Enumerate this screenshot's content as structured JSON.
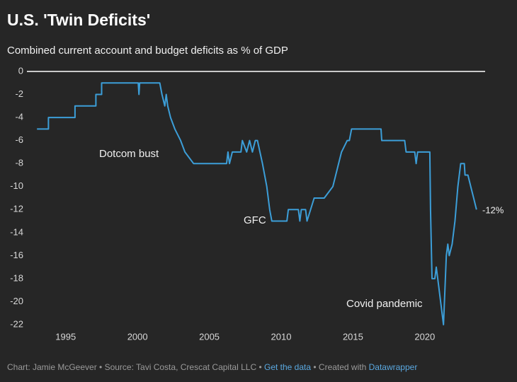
{
  "chart_data": {
    "type": "line",
    "title": "U.S. 'Twin Deficits'",
    "subtitle": "Combined current account and budget deficits as % of GDP",
    "annotations": [
      "Dotcom bust",
      "GFC",
      "Covid pandemic",
      "-12%"
    ],
    "footer": [
      "Chart: Jamie McGeever • Source: Tavi Costa, Crescat Capital LLC • ",
      "Get the data",
      " • Created with ",
      "Datawrapper"
    ],
    "xlim": [
      1992.3,
      2024.2
    ],
    "ylim": [
      -22,
      0
    ],
    "xticks": [
      1995,
      2000,
      2005,
      2010,
      2015,
      2020
    ],
    "yticks": [
      0,
      -2,
      -4,
      -6,
      -8,
      -10,
      -12,
      -14,
      -16,
      -18,
      -20,
      -22
    ],
    "grid": false,
    "series": [
      {
        "color": "#3c9ed8",
        "x": [
          1993.0,
          1993.8,
          1993.8,
          1995.65,
          1995.65,
          1997.1,
          1997.1,
          1997.5,
          1997.5,
          2000.05,
          2000.1,
          2000.15,
          2001.55,
          2001.7,
          2001.9,
          2002.0,
          2002.1,
          2002.3,
          2002.6,
          2003.0,
          2003.3,
          2003.9,
          2006.2,
          2006.3,
          2006.4,
          2006.6,
          2007.2,
          2007.3,
          2007.6,
          2007.8,
          2008.0,
          2008.2,
          2008.35,
          2008.7,
          2009.0,
          2009.2,
          2009.35,
          2010.4,
          2010.5,
          2011.2,
          2011.3,
          2011.4,
          2011.7,
          2011.8,
          2012.3,
          2013.0,
          2013.6,
          2014.0,
          2014.2,
          2014.6,
          2014.75,
          2014.9,
          2016.95,
          2017.0,
          2018.6,
          2018.7,
          2019.3,
          2019.4,
          2019.5,
          2020.35,
          2020.4,
          2020.5,
          2020.7,
          2020.8,
          2020.9,
          2021.3,
          2021.5,
          2021.6,
          2021.7,
          2021.9,
          2022.1,
          2022.3,
          2022.5,
          2022.75,
          2022.8,
          2023.0,
          2023.2,
          2023.4,
          2023.6
        ],
        "values": [
          -5,
          -5,
          -4,
          -4,
          -3,
          -3,
          -2,
          -2,
          -1,
          -1,
          -2,
          -1,
          -1,
          -2,
          -3,
          -2,
          -3,
          -4,
          -5,
          -6,
          -7,
          -8,
          -8,
          -7,
          -8,
          -7,
          -7,
          -6,
          -7,
          -6,
          -7,
          -6,
          -6,
          -8,
          -10,
          -12,
          -13,
          -13,
          -12,
          -12,
          -13,
          -12,
          -12,
          -13,
          -11,
          -11,
          -10,
          -8,
          -7,
          -6,
          -6,
          -5,
          -5,
          -6,
          -6,
          -7,
          -7,
          -8,
          -7,
          -7,
          -12,
          -18,
          -18,
          -17,
          -18,
          -22,
          -16,
          -15,
          -16,
          -15,
          -13,
          -10,
          -8,
          -8,
          -9,
          -9,
          -10,
          -11,
          -12
        ]
      }
    ]
  }
}
